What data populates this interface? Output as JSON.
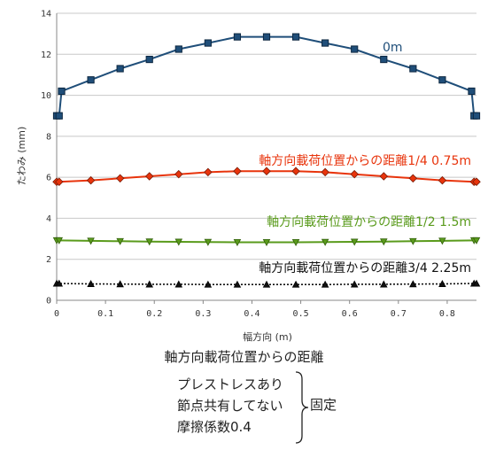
{
  "chart_data": {
    "type": "line",
    "xlabel": "幅方向 (m)",
    "ylabel": "たわみ (mm)",
    "xlim": [
      0,
      0.86
    ],
    "ylim": [
      0,
      14
    ],
    "xticks": [
      "0",
      "0.1",
      "0.2",
      "0.3",
      "0.4",
      "0.5",
      "0.6",
      "0.7",
      "0.8"
    ],
    "yticks": [
      "0",
      "2",
      "4",
      "6",
      "8",
      "10",
      "12",
      "14"
    ],
    "grid": "horizontal",
    "series": [
      {
        "name": "0m",
        "color": "#1f4e79",
        "marker": "square",
        "x": [
          0,
          0.005,
          0.01,
          0.07,
          0.13,
          0.19,
          0.25,
          0.31,
          0.37,
          0.43,
          0.49,
          0.55,
          0.61,
          0.67,
          0.73,
          0.79,
          0.85,
          0.855,
          0.86
        ],
        "y": [
          9.0,
          9.0,
          10.2,
          10.75,
          11.3,
          11.75,
          12.25,
          12.55,
          12.85,
          12.85,
          12.85,
          12.55,
          12.25,
          11.75,
          11.3,
          10.75,
          10.2,
          9.0,
          9.0
        ]
      },
      {
        "name": "軸方向載荷位置からの距離1/4 0.75m",
        "color": "#e8340c",
        "marker": "diamond",
        "x": [
          0,
          0.005,
          0.07,
          0.13,
          0.19,
          0.25,
          0.31,
          0.37,
          0.43,
          0.49,
          0.55,
          0.61,
          0.67,
          0.73,
          0.79,
          0.855,
          0.86
        ],
        "y": [
          5.78,
          5.78,
          5.85,
          5.95,
          6.05,
          6.15,
          6.25,
          6.3,
          6.3,
          6.3,
          6.25,
          6.15,
          6.05,
          5.95,
          5.85,
          5.78,
          5.78
        ]
      },
      {
        "name": "軸方向載荷位置からの距離1/2 1.5m",
        "color": "#5a9b1c",
        "marker": "triangle-down",
        "x": [
          0,
          0.005,
          0.07,
          0.13,
          0.19,
          0.25,
          0.31,
          0.37,
          0.43,
          0.49,
          0.55,
          0.61,
          0.67,
          0.73,
          0.79,
          0.855,
          0.86
        ],
        "y": [
          2.92,
          2.92,
          2.9,
          2.88,
          2.86,
          2.85,
          2.84,
          2.83,
          2.83,
          2.83,
          2.84,
          2.85,
          2.86,
          2.88,
          2.9,
          2.92,
          2.92
        ]
      },
      {
        "name": "軸方向載荷位置からの距離3/4 2.25m",
        "color": "#111111",
        "marker": "triangle-up",
        "x": [
          0,
          0.005,
          0.07,
          0.13,
          0.19,
          0.25,
          0.31,
          0.37,
          0.43,
          0.49,
          0.55,
          0.61,
          0.67,
          0.73,
          0.79,
          0.855,
          0.86
        ],
        "y": [
          0.82,
          0.82,
          0.8,
          0.79,
          0.78,
          0.78,
          0.77,
          0.77,
          0.77,
          0.77,
          0.77,
          0.78,
          0.78,
          0.79,
          0.8,
          0.82,
          0.82
        ]
      }
    ]
  },
  "caption": "軸方向載荷位置からの距離",
  "conditions": {
    "lines": [
      "プレストレスあり",
      "節点共有してない",
      "摩擦係数0.4"
    ],
    "group_label": "固定"
  }
}
